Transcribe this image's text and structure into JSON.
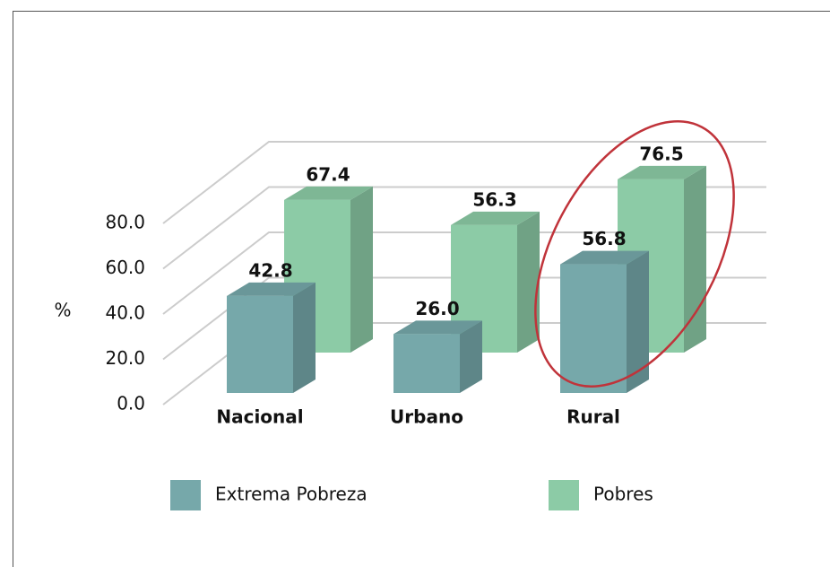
{
  "chart_data": {
    "type": "bar3d",
    "y_label": "%",
    "categories": [
      "Nacional",
      "Urbano",
      "Rural"
    ],
    "series": [
      {
        "name": "Extrema Pobreza",
        "color": "#76a8aa",
        "values": [
          42.8,
          26.0,
          56.8
        ],
        "value_labels": [
          "42.8",
          "26.0",
          "56.8"
        ]
      },
      {
        "name": "Pobres",
        "color": "#8ccba6",
        "values": [
          67.4,
          56.3,
          76.5
        ],
        "value_labels": [
          "67.4",
          "56.3",
          "76.5"
        ]
      }
    ],
    "ylim": [
      0,
      80
    ],
    "yticks": [
      {
        "value": 0,
        "label": "0.0"
      },
      {
        "value": 20,
        "label": "20.0"
      },
      {
        "value": 40,
        "label": "40.0"
      },
      {
        "value": 60,
        "label": "60.0"
      },
      {
        "value": 80,
        "label": "80.0"
      }
    ],
    "grid": true
  }
}
